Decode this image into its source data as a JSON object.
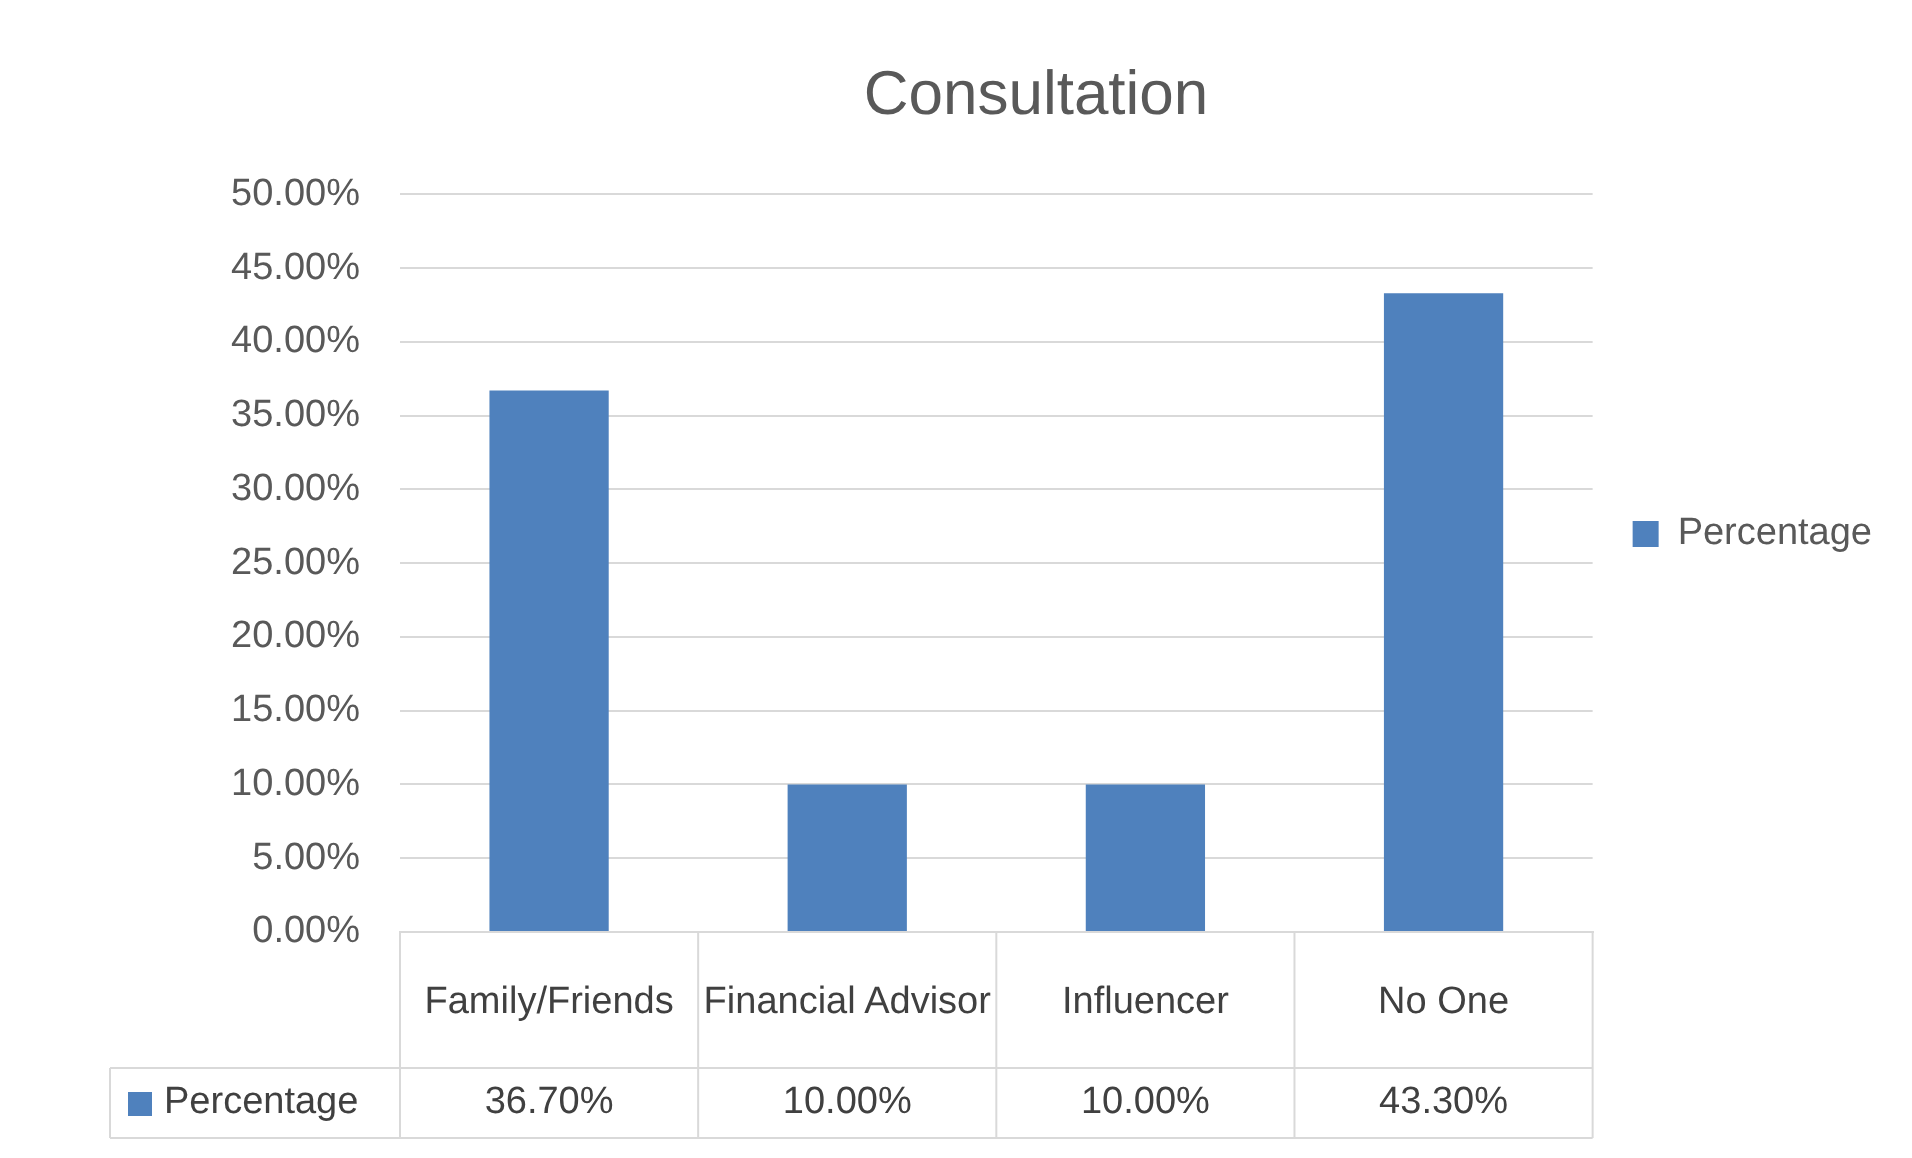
{
  "chart_data": {
    "type": "bar",
    "title": "Consultation",
    "categories": [
      "Family/Friends",
      "Financial Advisor",
      "Influencer",
      "No One"
    ],
    "series": [
      {
        "name": "Percentage",
        "color": "#4f81bd",
        "values": [
          36.7,
          10,
          10,
          43.3
        ],
        "value_labels": [
          "36.70%",
          "10.00%",
          "10.00%",
          "43.30%"
        ]
      }
    ],
    "ylim": [
      0,
      50
    ],
    "yticks": [
      {
        "value": 0,
        "label": "0.00%"
      },
      {
        "value": 5,
        "label": "5.00%"
      },
      {
        "value": 10,
        "label": "10.00%"
      },
      {
        "value": 15,
        "label": "15.00%"
      },
      {
        "value": 20,
        "label": "20.00%"
      },
      {
        "value": 25,
        "label": "25.00%"
      },
      {
        "value": 30,
        "label": "30.00%"
      },
      {
        "value": 35,
        "label": "35.00%"
      },
      {
        "value": 40,
        "label": "40.00%"
      },
      {
        "value": 45,
        "label": "45.00%"
      },
      {
        "value": 50,
        "label": "50.00%"
      }
    ],
    "grid": "y",
    "legend": "right"
  }
}
